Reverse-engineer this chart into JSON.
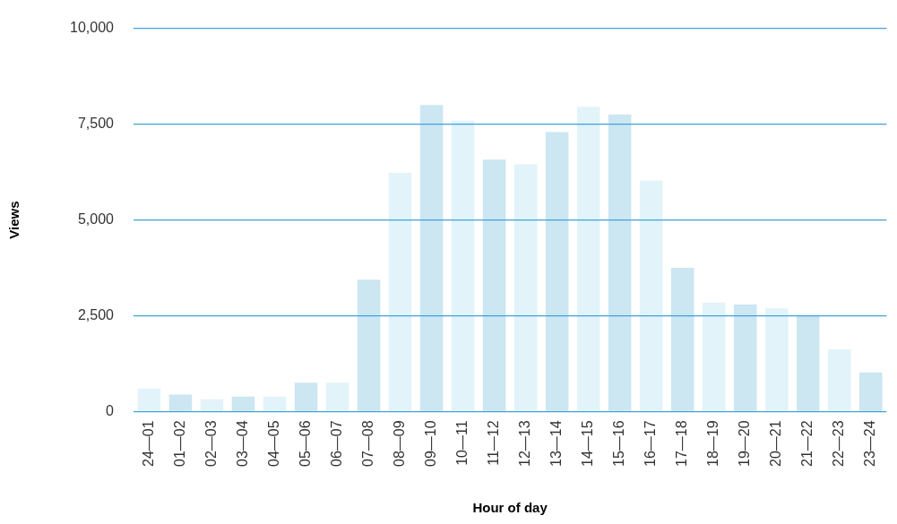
{
  "chart_data": {
    "type": "bar",
    "xlabel": "Hour of day",
    "ylabel": "Views",
    "categories": [
      "24—01",
      "01—02",
      "02—03",
      "03—04",
      "04—05",
      "05—06",
      "06—07",
      "07—08",
      "08—09",
      "09—10",
      "10—11",
      "11—12",
      "12—13",
      "13—14",
      "14—15",
      "15—16",
      "16—17",
      "17—18",
      "18—19",
      "19—20",
      "20—21",
      "21—22",
      "22—23",
      "23—24"
    ],
    "values": [
      600,
      440,
      320,
      390,
      390,
      750,
      750,
      3440,
      6230,
      8000,
      7590,
      6570,
      6450,
      7290,
      7950,
      7750,
      6030,
      3750,
      2840,
      2790,
      2690,
      2500,
      1620,
      1020
    ],
    "colors": [
      "#e2f3fa",
      "#cce6f2",
      "#e2f3fa",
      "#cce6f2",
      "#e2f3fa",
      "#cce6f2",
      "#e2f3fa",
      "#cce6f2",
      "#e2f3fa",
      "#cce6f2",
      "#e2f3fa",
      "#cce6f2",
      "#e2f3fa",
      "#cce6f2",
      "#e2f3fa",
      "#cce6f2",
      "#e2f3fa",
      "#cce6f2",
      "#e2f3fa",
      "#cce6f2",
      "#e2f3fa",
      "#cce6f2",
      "#e2f3fa",
      "#cce6f2"
    ],
    "ylim": [
      0,
      10000
    ],
    "yticks": [
      0,
      {
        "value": 2500,
        "label": "2,500"
      },
      {
        "value": 5000,
        "label": "5,000"
      },
      {
        "value": 7500,
        "label": "7,500"
      },
      {
        "value": 10000,
        "label": "10,000"
      }
    ],
    "grid": "y",
    "legend": false
  }
}
